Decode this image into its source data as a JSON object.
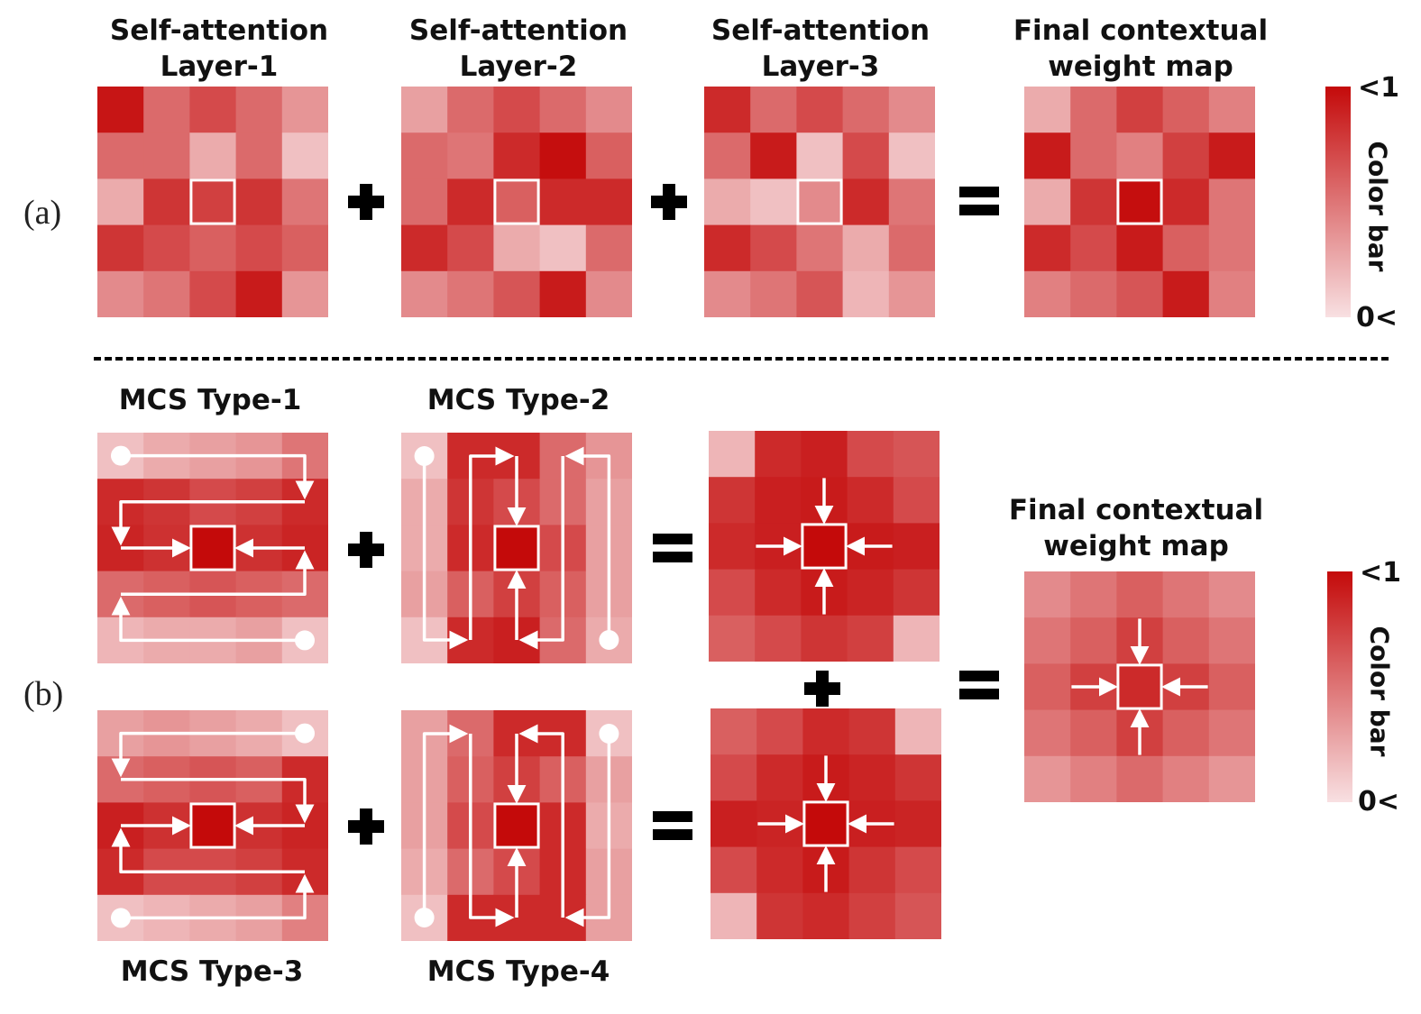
{
  "panel_a": {
    "label": "(a)",
    "titles": {
      "sa1": "Self-attention\nLayer-1",
      "sa2": "Self-attention\nLayer-2",
      "sa3": "Self-attention\nLayer-3",
      "final": "Final contextual\nweight map"
    },
    "grids": {
      "sa1": [
        [
          0.95,
          0.55,
          0.7,
          0.55,
          0.35
        ],
        [
          0.55,
          0.55,
          0.25,
          0.55,
          0.15
        ],
        [
          0.25,
          0.8,
          0.75,
          0.8,
          0.5
        ],
        [
          0.8,
          0.7,
          0.6,
          0.7,
          0.6
        ],
        [
          0.4,
          0.5,
          0.7,
          0.92,
          0.35
        ]
      ],
      "sa2": [
        [
          0.3,
          0.55,
          0.7,
          0.55,
          0.4
        ],
        [
          0.55,
          0.5,
          0.85,
          0.98,
          0.6
        ],
        [
          0.55,
          0.85,
          0.6,
          0.85,
          0.85
        ],
        [
          0.85,
          0.7,
          0.25,
          0.15,
          0.55
        ],
        [
          0.4,
          0.5,
          0.65,
          0.92,
          0.4
        ]
      ],
      "sa3": [
        [
          0.85,
          0.55,
          0.7,
          0.55,
          0.4
        ],
        [
          0.55,
          0.92,
          0.15,
          0.7,
          0.15
        ],
        [
          0.25,
          0.15,
          0.4,
          0.85,
          0.5
        ],
        [
          0.85,
          0.7,
          0.5,
          0.25,
          0.55
        ],
        [
          0.4,
          0.5,
          0.65,
          0.2,
          0.35
        ]
      ],
      "final": [
        [
          0.25,
          0.55,
          0.75,
          0.6,
          0.45
        ],
        [
          0.92,
          0.55,
          0.45,
          0.75,
          0.92
        ],
        [
          0.25,
          0.8,
          0.98,
          0.85,
          0.5
        ],
        [
          0.85,
          0.7,
          0.92,
          0.6,
          0.5
        ],
        [
          0.45,
          0.55,
          0.65,
          0.92,
          0.45
        ]
      ]
    },
    "colorbar": {
      "max_label": "<1",
      "min_label": "0<",
      "title": "Color bar"
    }
  },
  "panel_b": {
    "label": "(b)",
    "titles": {
      "t1": "MCS Type-1",
      "t2": "MCS Type-2",
      "t3": "MCS Type-3",
      "t4": "MCS Type-4",
      "final": "Final contextual\nweight map"
    },
    "grids": {
      "t1": [
        [
          0.15,
          0.25,
          0.3,
          0.35,
          0.5
        ],
        [
          0.85,
          0.8,
          0.7,
          0.75,
          0.85
        ],
        [
          0.88,
          0.82,
          1.0,
          0.82,
          0.88
        ],
        [
          0.55,
          0.6,
          0.65,
          0.6,
          0.55
        ],
        [
          0.2,
          0.25,
          0.25,
          0.3,
          0.15
        ]
      ],
      "t2": [
        [
          0.15,
          0.85,
          0.85,
          0.55,
          0.35
        ],
        [
          0.25,
          0.8,
          0.7,
          0.55,
          0.3
        ],
        [
          0.25,
          0.85,
          1.0,
          0.7,
          0.3
        ],
        [
          0.3,
          0.6,
          0.75,
          0.6,
          0.3
        ],
        [
          0.15,
          0.85,
          0.9,
          0.55,
          0.25
        ]
      ],
      "t3": [
        [
          0.3,
          0.35,
          0.3,
          0.25,
          0.15
        ],
        [
          0.55,
          0.6,
          0.65,
          0.6,
          0.85
        ],
        [
          0.9,
          0.82,
          1.0,
          0.82,
          0.88
        ],
        [
          0.85,
          0.7,
          0.7,
          0.75,
          0.85
        ],
        [
          0.15,
          0.2,
          0.25,
          0.3,
          0.45
        ]
      ],
      "t4": [
        [
          0.3,
          0.55,
          0.85,
          0.85,
          0.15
        ],
        [
          0.3,
          0.6,
          0.75,
          0.6,
          0.3
        ],
        [
          0.3,
          0.7,
          1.0,
          0.85,
          0.25
        ],
        [
          0.25,
          0.55,
          0.7,
          0.85,
          0.3
        ],
        [
          0.15,
          0.85,
          0.85,
          0.85,
          0.3
        ]
      ],
      "sum1": [
        [
          0.2,
          0.85,
          0.9,
          0.7,
          0.65
        ],
        [
          0.8,
          0.9,
          0.92,
          0.85,
          0.7
        ],
        [
          0.85,
          0.9,
          1.0,
          0.92,
          0.9
        ],
        [
          0.7,
          0.85,
          0.92,
          0.88,
          0.8
        ],
        [
          0.6,
          0.7,
          0.8,
          0.75,
          0.2
        ]
      ],
      "sum2": [
        [
          0.6,
          0.7,
          0.85,
          0.8,
          0.2
        ],
        [
          0.7,
          0.85,
          0.92,
          0.88,
          0.8
        ],
        [
          0.9,
          0.88,
          1.0,
          0.9,
          0.88
        ],
        [
          0.7,
          0.85,
          0.92,
          0.8,
          0.7
        ],
        [
          0.2,
          0.8,
          0.85,
          0.75,
          0.65
        ]
      ],
      "final": [
        [
          0.4,
          0.5,
          0.6,
          0.5,
          0.4
        ],
        [
          0.5,
          0.6,
          0.75,
          0.6,
          0.5
        ],
        [
          0.6,
          0.75,
          0.85,
          0.75,
          0.6
        ],
        [
          0.5,
          0.6,
          0.75,
          0.6,
          0.5
        ],
        [
          0.35,
          0.45,
          0.55,
          0.45,
          0.35
        ]
      ]
    },
    "colorbar": {
      "max_label": "<1",
      "min_label": "0<",
      "title": "Color bar"
    }
  },
  "operators": {
    "plus": "+",
    "equals": "="
  },
  "colors": {
    "min": "#f8e0e2",
    "max": "#c40a0a",
    "highlight_stroke": "#ffffff",
    "arrow": "#ffffff",
    "divider": "#000000"
  }
}
